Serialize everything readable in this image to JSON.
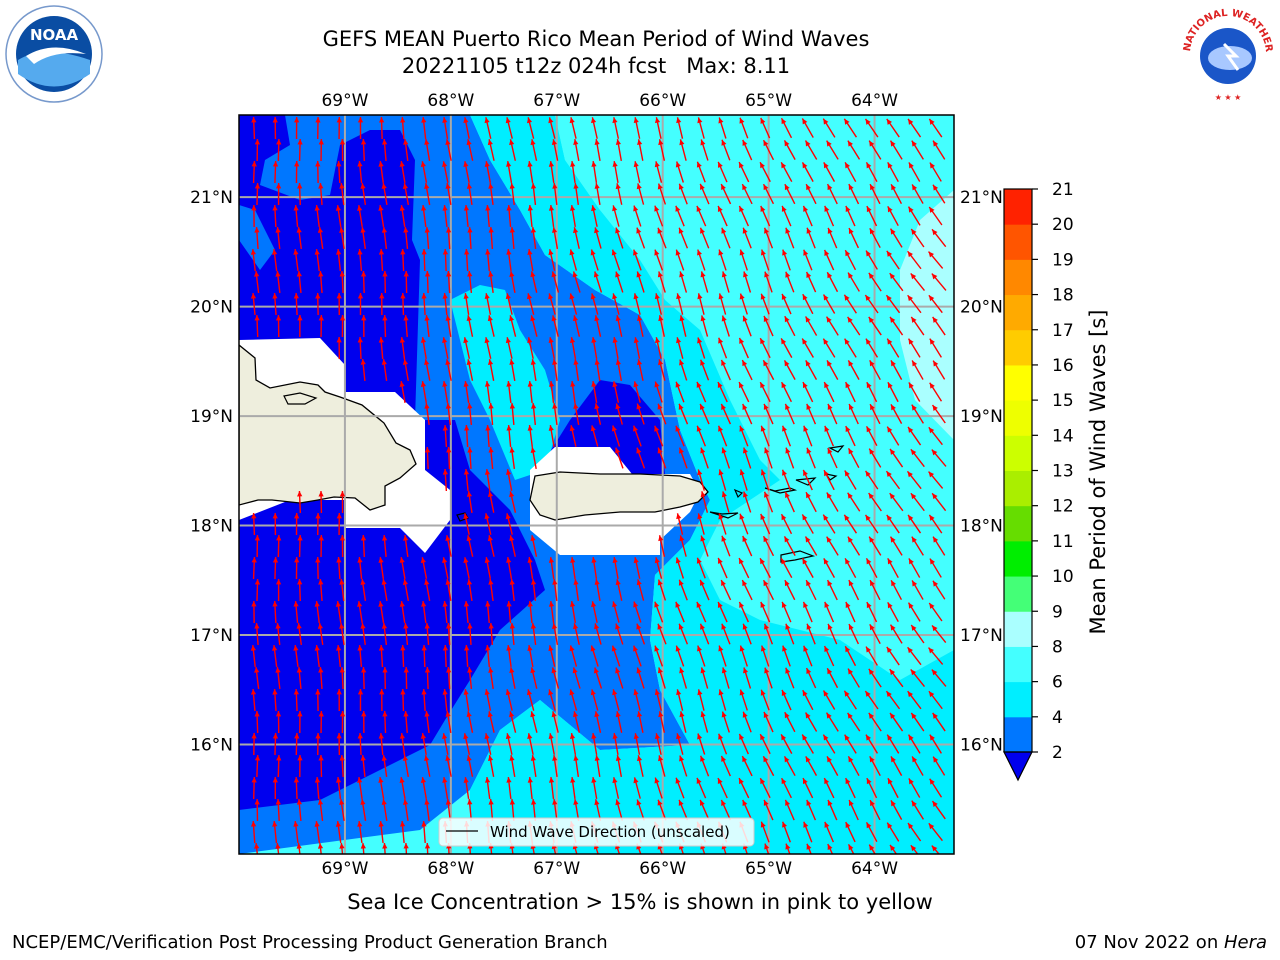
{
  "title": {
    "line1": "GEFS MEAN Puerto Rico Mean Period of Wind Waves",
    "line2": "20221105 t12z 024h fcst   Max: 8.11"
  },
  "map": {
    "lon_labels": [
      "69°W",
      "68°W",
      "67°W",
      "66°W",
      "65°W",
      "64°W"
    ],
    "lon_values": [
      -69,
      -68,
      -67,
      -66,
      -65,
      -64
    ],
    "lat_labels": [
      "21°N",
      "20°N",
      "19°N",
      "18°N",
      "17°N",
      "16°N"
    ],
    "lat_values": [
      21,
      20,
      19,
      18,
      17,
      16
    ],
    "lon_range": [
      -70.0,
      -63.25
    ],
    "lat_range": [
      15.0,
      21.75
    ],
    "arrow_color": "#ff0000",
    "land_color": "#eeeedd"
  },
  "legend": {
    "label": "Wind Wave Direction (unscaled)"
  },
  "colorbar": {
    "title": "Mean Period of Wind Waves [s]",
    "ticks": [
      "2",
      "4",
      "6",
      "8",
      "9",
      "10",
      "11",
      "12",
      "13",
      "14",
      "15",
      "16",
      "17",
      "18",
      "19",
      "20",
      "21"
    ],
    "colors": [
      "#0000ff",
      "#0077ff",
      "#00eeff",
      "#44ffff",
      "#aaffff",
      "#44ff77",
      "#00ee00",
      "#66dd00",
      "#aaee00",
      "#ccff00",
      "#eeff00",
      "#ffff00",
      "#ffcc00",
      "#ffaa00",
      "#ff8800",
      "#ff5500",
      "#ff2200",
      "#ff0000"
    ],
    "under_color": "#0000ee"
  },
  "ice_note": "Sea Ice Concentration > 15% is shown in pink to yellow",
  "footer": {
    "left": "NCEP/EMC/Verification Post Processing Product Generation Branch",
    "right_prefix": "07 Nov 2022 on ",
    "right_host": "Hera"
  },
  "logos": {
    "noaa": "NOAA",
    "nws_arc": "NATIONAL WEATHER SERVICE"
  }
}
